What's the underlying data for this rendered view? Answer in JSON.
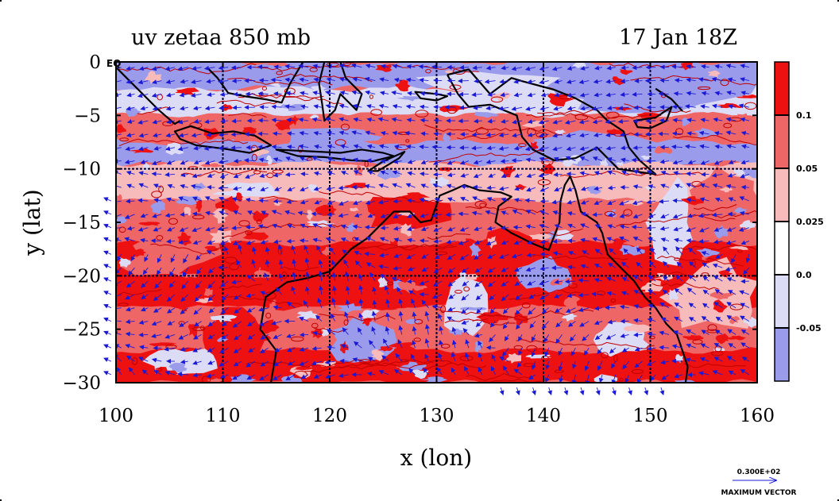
{
  "chart_data": {
    "type": "heatmap",
    "title_left": "uv zetaa 850 mb",
    "title_right": "17 Jan 18Z",
    "xlabel": "x (lon)",
    "ylabel": "y (lat)",
    "xlim": [
      100,
      160
    ],
    "ylim": [
      -30,
      0
    ],
    "x_ticks": [
      100,
      110,
      120,
      130,
      140,
      150,
      160
    ],
    "x_tick_labels": [
      "100",
      "110",
      "120",
      "130",
      "140",
      "150",
      "160"
    ],
    "y_ticks": [
      0,
      -5,
      -10,
      -15,
      -20,
      -25,
      -30
    ],
    "y_tick_labels": [
      "0",
      "−5",
      "−10",
      "−15",
      "−20",
      "−25",
      "−30"
    ],
    "equator_label": "EQ",
    "grid_lon": [
      110,
      120,
      130,
      140,
      150
    ],
    "grid_lat": [
      -10,
      -20
    ],
    "colorbar": {
      "levels": [
        "0.1",
        "0.05",
        "0.025",
        "0.0",
        "-0.05"
      ],
      "colors": [
        "#ee1111",
        "#ee6666",
        "#f7bbbb",
        "#ffffff",
        "#dcdcf6",
        "#9b9bec"
      ]
    },
    "palette": {
      "strong_positive": "#ee1111",
      "positive": "#ee6666",
      "weak_positive": "#f7bbbb",
      "neutral": "#ffffff",
      "weak_negative": "#dcdcf6",
      "negative": "#9b9bec",
      "contour": "#c00000",
      "vector": "#1a1ad6",
      "coast": "#000000",
      "grid": "#000033"
    },
    "vector_reference": {
      "value": "0.300E+02",
      "label": "MAXIMUM VECTOR"
    },
    "bands": [
      {
        "lat_from": 0,
        "lat_to": -2.5,
        "class": "negative"
      },
      {
        "lat_from": -2.5,
        "lat_to": -5,
        "class": "weak_negative"
      },
      {
        "lat_from": -5,
        "lat_to": -7.5,
        "class": "positive"
      },
      {
        "lat_from": -7.5,
        "lat_to": -9.5,
        "class": "negative"
      },
      {
        "lat_from": -9.5,
        "lat_to": -13,
        "class": "weak_positive"
      },
      {
        "lat_from": -13,
        "lat_to": -17,
        "class": "positive"
      },
      {
        "lat_from": -17,
        "lat_to": -23,
        "class": "strong_positive"
      },
      {
        "lat_from": -23,
        "lat_to": -27,
        "class": "positive"
      },
      {
        "lat_from": -27,
        "lat_to": -30,
        "class": "strong_positive"
      }
    ],
    "patches": [
      {
        "lon": 104,
        "lat": -1,
        "rx": 5,
        "ry": 1.2,
        "class": "negative"
      },
      {
        "lon": 150,
        "lat": -3,
        "rx": 9,
        "ry": 1.5,
        "class": "negative"
      },
      {
        "lon": 135,
        "lat": -2,
        "rx": 6,
        "ry": 1.0,
        "class": "weak_negative"
      },
      {
        "lon": 145,
        "lat": -8,
        "rx": 6,
        "ry": 1.5,
        "class": "negative"
      },
      {
        "lon": 112,
        "lat": -12,
        "rx": 3,
        "ry": 0.8,
        "class": "weak_negative"
      },
      {
        "lon": 140,
        "lat": -20,
        "rx": 2.5,
        "ry": 1.5,
        "class": "negative"
      },
      {
        "lon": 137,
        "lat": -17,
        "rx": 3,
        "ry": 1.2,
        "class": "strong_positive"
      },
      {
        "lon": 127,
        "lat": -14,
        "rx": 4,
        "ry": 1.5,
        "class": "strong_positive"
      },
      {
        "lon": 118,
        "lat": -20,
        "rx": 4,
        "ry": 2.0,
        "class": "strong_positive"
      },
      {
        "lon": 123,
        "lat": -26,
        "rx": 3,
        "ry": 2.0,
        "class": "negative"
      },
      {
        "lon": 133,
        "lat": -23,
        "rx": 2,
        "ry": 3.0,
        "class": "weak_negative"
      },
      {
        "lon": 147,
        "lat": -26,
        "rx": 3,
        "ry": 1.5,
        "class": "weak_negative"
      },
      {
        "lon": 156,
        "lat": -22,
        "rx": 4,
        "ry": 3.0,
        "class": "weak_positive"
      },
      {
        "lon": 157,
        "lat": -12,
        "rx": 3,
        "ry": 2.0,
        "class": "positive"
      },
      {
        "lon": 111,
        "lat": -26,
        "rx": 3,
        "ry": 2.5,
        "class": "strong_positive"
      },
      {
        "lon": 105,
        "lat": -18,
        "rx": 4,
        "ry": 2.0,
        "class": "positive"
      },
      {
        "lon": 106,
        "lat": -28,
        "rx": 3,
        "ry": 1.2,
        "class": "weak_negative"
      },
      {
        "lon": 152,
        "lat": -15,
        "rx": 2,
        "ry": 3.5,
        "class": "weak_negative"
      },
      {
        "lon": 129,
        "lat": -19,
        "rx": 3,
        "ry": 2.0,
        "class": "strong_positive"
      },
      {
        "lon": 120,
        "lat": -7,
        "rx": 5,
        "ry": 0.8,
        "class": "negative"
      }
    ],
    "coastlines": [
      {
        "name": "Sumatra",
        "closed": false,
        "points": [
          [
            100,
            -0.5
          ],
          [
            101,
            -1.5
          ],
          [
            102.5,
            -3
          ],
          [
            104,
            -4.5
          ],
          [
            105.5,
            -5.8
          ],
          [
            106,
            -5.5
          ]
        ]
      },
      {
        "name": "Borneo",
        "closed": false,
        "points": [
          [
            108.5,
            -0.5
          ],
          [
            109.5,
            -1.5
          ],
          [
            110.5,
            -2.9
          ],
          [
            112,
            -3.2
          ],
          [
            114,
            -3.5
          ],
          [
            115.5,
            -3.8
          ],
          [
            116.3,
            -2
          ],
          [
            117.5,
            0
          ]
        ]
      },
      {
        "name": "Java",
        "closed": true,
        "points": [
          [
            105.5,
            -6.5
          ],
          [
            107,
            -6
          ],
          [
            109,
            -6.7
          ],
          [
            111,
            -6.5
          ],
          [
            113,
            -6.9
          ],
          [
            114.5,
            -7.8
          ],
          [
            112.5,
            -8.5
          ],
          [
            110,
            -8.1
          ],
          [
            107.5,
            -7.8
          ],
          [
            106,
            -7.2
          ]
        ]
      },
      {
        "name": "Lesser Sunda",
        "closed": true,
        "points": [
          [
            115,
            -8.2
          ],
          [
            117,
            -8.3
          ],
          [
            119,
            -8.4
          ],
          [
            121,
            -8.5
          ],
          [
            123,
            -8.2
          ],
          [
            125,
            -8.5
          ],
          [
            126,
            -8.8
          ],
          [
            124,
            -9.3
          ],
          [
            122,
            -9.2
          ],
          [
            119.5,
            -8.9
          ],
          [
            117,
            -8.8
          ]
        ]
      },
      {
        "name": "Timor",
        "closed": true,
        "points": [
          [
            123.6,
            -10.2
          ],
          [
            125,
            -9.3
          ],
          [
            127,
            -8.4
          ],
          [
            126.5,
            -9
          ],
          [
            124.5,
            -10.2
          ]
        ]
      },
      {
        "name": "Sulawesi",
        "closed": false,
        "points": [
          [
            119.5,
            0
          ],
          [
            119,
            -2
          ],
          [
            119.3,
            -4
          ],
          [
            119.5,
            -5.5
          ],
          [
            120.5,
            -4.5
          ],
          [
            121,
            -3
          ],
          [
            122.5,
            -4.5
          ],
          [
            123,
            -3
          ],
          [
            121.5,
            -1.5
          ],
          [
            121,
            0
          ]
        ]
      },
      {
        "name": "Seram",
        "closed": true,
        "points": [
          [
            128,
            -2.8
          ],
          [
            130,
            -3
          ],
          [
            131,
            -3.2
          ],
          [
            130,
            -3.6
          ],
          [
            128.5,
            -3.4
          ]
        ]
      },
      {
        "name": "New Guinea",
        "closed": false,
        "points": [
          [
            131,
            -1.2
          ],
          [
            133,
            -0.7
          ],
          [
            135,
            -3
          ],
          [
            137,
            -1.5
          ],
          [
            138,
            -1.8
          ],
          [
            141,
            -2.6
          ],
          [
            143,
            -3.4
          ],
          [
            145,
            -4.5
          ],
          [
            146,
            -5.5
          ],
          [
            147.5,
            -6.5
          ],
          [
            148,
            -8
          ],
          [
            149,
            -9.2
          ],
          [
            150.5,
            -10.5
          ],
          [
            149,
            -10.3
          ],
          [
            147,
            -10
          ],
          [
            145,
            -8
          ],
          [
            143,
            -9
          ],
          [
            141,
            -9.2
          ],
          [
            139,
            -8.2
          ],
          [
            138,
            -7
          ],
          [
            137.5,
            -5
          ],
          [
            135,
            -4
          ],
          [
            133,
            -4.2
          ],
          [
            132,
            -3
          ],
          [
            131,
            -1.2
          ]
        ]
      },
      {
        "name": "New Britain",
        "closed": true,
        "points": [
          [
            148.5,
            -5.5
          ],
          [
            150.5,
            -5.2
          ],
          [
            152,
            -4.2
          ],
          [
            151.5,
            -5.5
          ],
          [
            150,
            -6.2
          ],
          [
            148.8,
            -6.1
          ]
        ]
      },
      {
        "name": "New Ireland",
        "closed": false,
        "points": [
          [
            150.5,
            -2.5
          ],
          [
            152,
            -3.5
          ],
          [
            153,
            -4.6
          ]
        ]
      },
      {
        "name": "Australia",
        "closed": false,
        "points": [
          [
            114.5,
            -30
          ],
          [
            115,
            -27
          ],
          [
            113.5,
            -25
          ],
          [
            114,
            -22
          ],
          [
            116,
            -20.6
          ],
          [
            118,
            -20.2
          ],
          [
            120,
            -19.6
          ],
          [
            122,
            -17.5
          ],
          [
            123.5,
            -16.5
          ],
          [
            124.5,
            -15.5
          ],
          [
            126,
            -14
          ],
          [
            127.5,
            -14
          ],
          [
            128.5,
            -15
          ],
          [
            129.5,
            -14.8
          ],
          [
            130.3,
            -12.5
          ],
          [
            131.5,
            -12
          ],
          [
            132.6,
            -11.5
          ],
          [
            134,
            -12
          ],
          [
            136,
            -12.2
          ],
          [
            137,
            -12.6
          ],
          [
            135.8,
            -13.5
          ],
          [
            135.5,
            -15
          ],
          [
            137,
            -16
          ],
          [
            139,
            -17
          ],
          [
            140.5,
            -17.6
          ],
          [
            141.5,
            -15
          ],
          [
            141.6,
            -13
          ],
          [
            142,
            -11.5
          ],
          [
            142.5,
            -10.7
          ],
          [
            143,
            -12
          ],
          [
            143.5,
            -14
          ],
          [
            145,
            -15
          ],
          [
            145.5,
            -16
          ],
          [
            146,
            -18
          ],
          [
            147,
            -19
          ],
          [
            148.5,
            -20.5
          ],
          [
            149.5,
            -22
          ],
          [
            150.5,
            -23
          ],
          [
            151.5,
            -24.5
          ],
          [
            152.5,
            -25.5
          ],
          [
            153,
            -27
          ],
          [
            153.5,
            -28.5
          ],
          [
            153.3,
            -30
          ]
        ]
      }
    ]
  }
}
